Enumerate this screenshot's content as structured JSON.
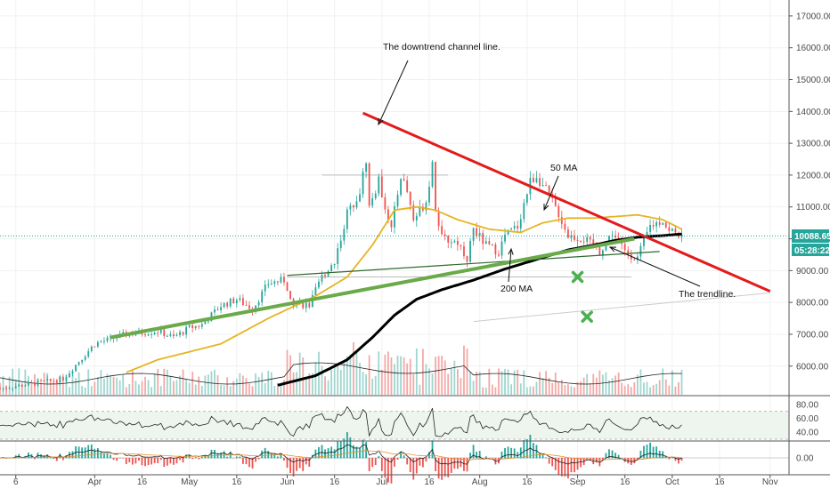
{
  "chart_data": {
    "type": "candlestick",
    "symbol_hint": "price chart with 50 MA, 200 MA, volume, RSI and MACD panes",
    "price_axis_ticks": [
      "17000.00",
      "16000.00",
      "15000.00",
      "14000.00",
      "13000.00",
      "12000.00",
      "11000.00",
      "10000.00",
      "9000.00",
      "8000.00",
      "7000.00",
      "6000.00"
    ],
    "price_range": [
      5100,
      17500
    ],
    "current_price": "10088.65",
    "countdown": "05:28:22",
    "rsi_axis_ticks": [
      "80.00",
      "60.00",
      "40.00"
    ],
    "rsi_range": [
      30,
      90
    ],
    "rsi_band": [
      30,
      70
    ],
    "macd_axis_ticks": [
      "0.00"
    ],
    "x_axis_ticks": [
      "6",
      "Apr",
      "16",
      "May",
      "16",
      "Jun",
      "16",
      "Jul",
      "16",
      "Aug",
      "16",
      "Sep",
      "16",
      "Oct",
      "16",
      "Nov"
    ],
    "month_start_days": {
      "Apr": 0,
      "May": 30,
      "Jun": 61,
      "Jul": 91,
      "Aug": 122,
      "Sep": 153,
      "Oct": 183,
      "Nov": 214
    },
    "day_range": [
      -30,
      220
    ],
    "annotations": {
      "channel": "The downtrend channel line.",
      "ma50": "50 MA",
      "ma200": "200 MA",
      "trendline": "The trendline."
    },
    "trend_lines": {
      "downtrend_channel": {
        "color": "#e31b1b",
        "from": [
          85,
          13950
        ],
        "to": [
          214,
          8350
        ]
      },
      "trendline": {
        "color": "#6aaa4a",
        "from": [
          5,
          6900
        ],
        "to": [
          171,
          10000
        ]
      },
      "upper_support": {
        "color": "#2e6b2e",
        "from": [
          61,
          8850
        ],
        "to": [
          179,
          9600
        ]
      },
      "horizontal_resistance": {
        "color": "#bbbbbb",
        "from": [
          72,
          12000
        ],
        "to": [
          112,
          12000
        ]
      },
      "horizontal_support": {
        "color": "#bbbbbb",
        "from": [
          61,
          8800
        ],
        "to": [
          170,
          8800
        ]
      },
      "lower_channel": {
        "color": "#cccccc",
        "from": [
          120,
          7400
        ],
        "to": [
          214,
          8300
        ]
      }
    },
    "targets": [
      [
        153,
        8800
      ],
      [
        156,
        7550
      ]
    ],
    "ohlc_keyframes": [
      [
        -30,
        5300
      ],
      [
        -10,
        5600
      ],
      [
        0,
        6700
      ],
      [
        10,
        7000
      ],
      [
        20,
        7100
      ],
      [
        25,
        6900
      ],
      [
        30,
        7200
      ],
      [
        34,
        7300
      ],
      [
        40,
        7900
      ],
      [
        45,
        8100
      ],
      [
        50,
        7800
      ],
      [
        55,
        8600
      ],
      [
        60,
        8700
      ],
      [
        63,
        8000
      ],
      [
        68,
        7900
      ],
      [
        72,
        8800
      ],
      [
        76,
        9300
      ],
      [
        80,
        10800
      ],
      [
        84,
        11500
      ],
      [
        86,
        12500
      ],
      [
        87,
        11000
      ],
      [
        90,
        11800
      ],
      [
        94,
        10300
      ],
      [
        97,
        12000
      ],
      [
        99,
        11500
      ],
      [
        101,
        10600
      ],
      [
        105,
        11200
      ],
      [
        107,
        12400
      ],
      [
        108,
        11000
      ],
      [
        110,
        10000
      ],
      [
        115,
        9900
      ],
      [
        118,
        9400
      ],
      [
        120,
        10300
      ],
      [
        124,
        9800
      ],
      [
        128,
        9600
      ],
      [
        130,
        10100
      ],
      [
        134,
        10400
      ],
      [
        138,
        11800
      ],
      [
        140,
        12000
      ],
      [
        143,
        11500
      ],
      [
        147,
        10800
      ],
      [
        150,
        10100
      ],
      [
        155,
        10000
      ],
      [
        160,
        9600
      ],
      [
        164,
        10200
      ],
      [
        168,
        9600
      ],
      [
        172,
        9400
      ],
      [
        176,
        10400
      ],
      [
        180,
        10600
      ],
      [
        182,
        10200
      ],
      [
        184,
        10300
      ],
      [
        186,
        10000
      ]
    ],
    "ma50_keyframes": [
      [
        10,
        5800
      ],
      [
        20,
        6200
      ],
      [
        40,
        6700
      ],
      [
        55,
        7500
      ],
      [
        70,
        8200
      ],
      [
        80,
        8800
      ],
      [
        88,
        9800
      ],
      [
        95,
        10900
      ],
      [
        102,
        11000
      ],
      [
        108,
        10900
      ],
      [
        115,
        10600
      ],
      [
        125,
        10300
      ],
      [
        135,
        10200
      ],
      [
        142,
        10500
      ],
      [
        150,
        10650
      ],
      [
        158,
        10650
      ],
      [
        165,
        10700
      ],
      [
        172,
        10750
      ],
      [
        180,
        10600
      ],
      [
        186,
        10300
      ]
    ],
    "ma200_keyframes": [
      [
        58,
        5400
      ],
      [
        70,
        5700
      ],
      [
        80,
        6200
      ],
      [
        88,
        6900
      ],
      [
        95,
        7600
      ],
      [
        102,
        8100
      ],
      [
        110,
        8400
      ],
      [
        120,
        8700
      ],
      [
        130,
        9050
      ],
      [
        140,
        9350
      ],
      [
        150,
        9650
      ],
      [
        158,
        9800
      ],
      [
        165,
        9950
      ],
      [
        172,
        10050
      ],
      [
        180,
        10100
      ],
      [
        186,
        10150
      ]
    ],
    "colors": {
      "up": "#26a69a",
      "down": "#ef5350",
      "ma50": "#e6b422",
      "ma200": "#000000",
      "price_badge": "#26a69a",
      "countdown_badge": "#26a69a",
      "target": "#4caf50"
    }
  }
}
